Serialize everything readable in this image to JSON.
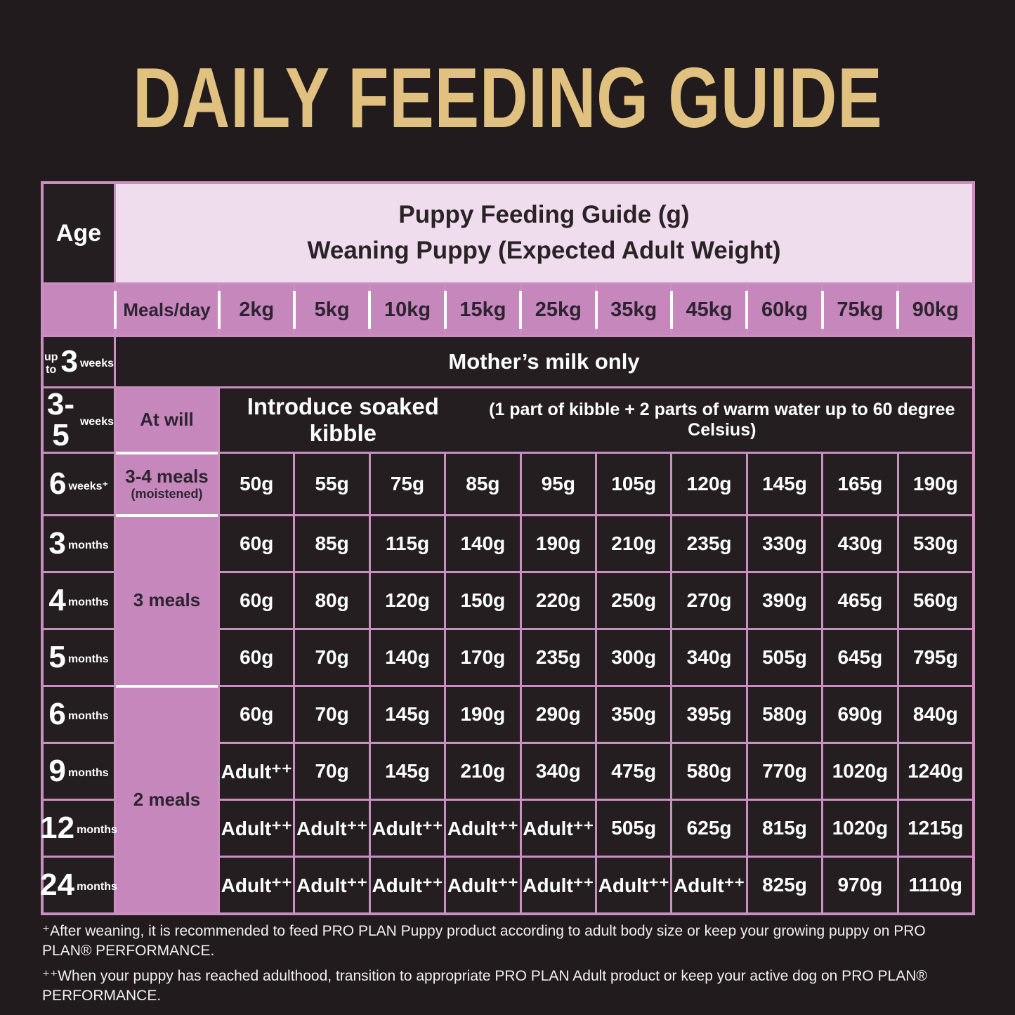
{
  "title": "DAILY FEEDING GUIDE",
  "table": {
    "age_header": "Age",
    "main_header_line1": "Puppy Feeding Guide (g)",
    "main_header_line2": "Weaning Puppy (Expected Adult Weight)",
    "meals_per_day_label": "Meals/day",
    "weight_columns": [
      "2kg",
      "5kg",
      "10kg",
      "15kg",
      "25kg",
      "35kg",
      "45kg",
      "60kg",
      "75kg",
      "90kg"
    ],
    "rows": [
      {
        "age_prefix": "up to",
        "age_big": "3",
        "age_unit": "weeks",
        "note": "Mother’s milk only"
      },
      {
        "age_big": "3-5",
        "age_unit": "weeks",
        "meals": "At will",
        "note_main": "Introduce soaked kibble",
        "note_detail": "(1 part of kibble + 2 parts of warm water up to 60 degree Celsius)"
      },
      {
        "age_big": "6",
        "age_unit": "weeks⁺",
        "meals_line1": "3-4 meals",
        "meals_line2": "(moistened)",
        "values": [
          "50g",
          "55g",
          "75g",
          "85g",
          "95g",
          "105g",
          "120g",
          "145g",
          "165g",
          "190g"
        ]
      },
      {
        "age_big": "3",
        "age_unit": "months",
        "meals": "3 meals",
        "values": [
          "60g",
          "85g",
          "115g",
          "140g",
          "190g",
          "210g",
          "235g",
          "330g",
          "430g",
          "530g"
        ]
      },
      {
        "age_big": "4",
        "age_unit": "months",
        "values": [
          "60g",
          "80g",
          "120g",
          "150g",
          "220g",
          "250g",
          "270g",
          "390g",
          "465g",
          "560g"
        ]
      },
      {
        "age_big": "5",
        "age_unit": "months",
        "values": [
          "60g",
          "70g",
          "140g",
          "170g",
          "235g",
          "300g",
          "340g",
          "505g",
          "645g",
          "795g"
        ]
      },
      {
        "age_big": "6",
        "age_unit": "months",
        "meals": "2 meals",
        "values": [
          "60g",
          "70g",
          "145g",
          "190g",
          "290g",
          "350g",
          "395g",
          "580g",
          "690g",
          "840g"
        ]
      },
      {
        "age_big": "9",
        "age_unit": "months",
        "values": [
          "Adult⁺⁺",
          "70g",
          "145g",
          "210g",
          "340g",
          "475g",
          "580g",
          "770g",
          "1020g",
          "1240g"
        ]
      },
      {
        "age_big": "12",
        "age_unit": "months",
        "values": [
          "Adult⁺⁺",
          "Adult⁺⁺",
          "Adult⁺⁺",
          "Adult⁺⁺",
          "Adult⁺⁺",
          "505g",
          "625g",
          "815g",
          "1020g",
          "1215g"
        ]
      },
      {
        "age_big": "24",
        "age_unit": "months",
        "values": [
          "Adult⁺⁺",
          "Adult⁺⁺",
          "Adult⁺⁺",
          "Adult⁺⁺",
          "Adult⁺⁺",
          "Adult⁺⁺",
          "Adult⁺⁺",
          "825g",
          "970g",
          "1110g"
        ]
      }
    ]
  },
  "footnotes": [
    "⁺After weaning, it is recommended to feed PRO PLAN Puppy product according to adult body size or keep your growing puppy on PRO PLAN® PERFORMANCE.",
    "⁺⁺When your puppy has reached adulthood, transition to appropriate PRO PLAN Adult product or keep your active dog on PRO PLAN® PERFORMANCE."
  ],
  "colors": {
    "background": "#211b1d",
    "title_gold": "#e1c180",
    "grid_pink": "#c98fc0",
    "cell_mauve": "#c687bd",
    "header_light_pink": "#efdcec",
    "cell_black": "#241e20"
  }
}
